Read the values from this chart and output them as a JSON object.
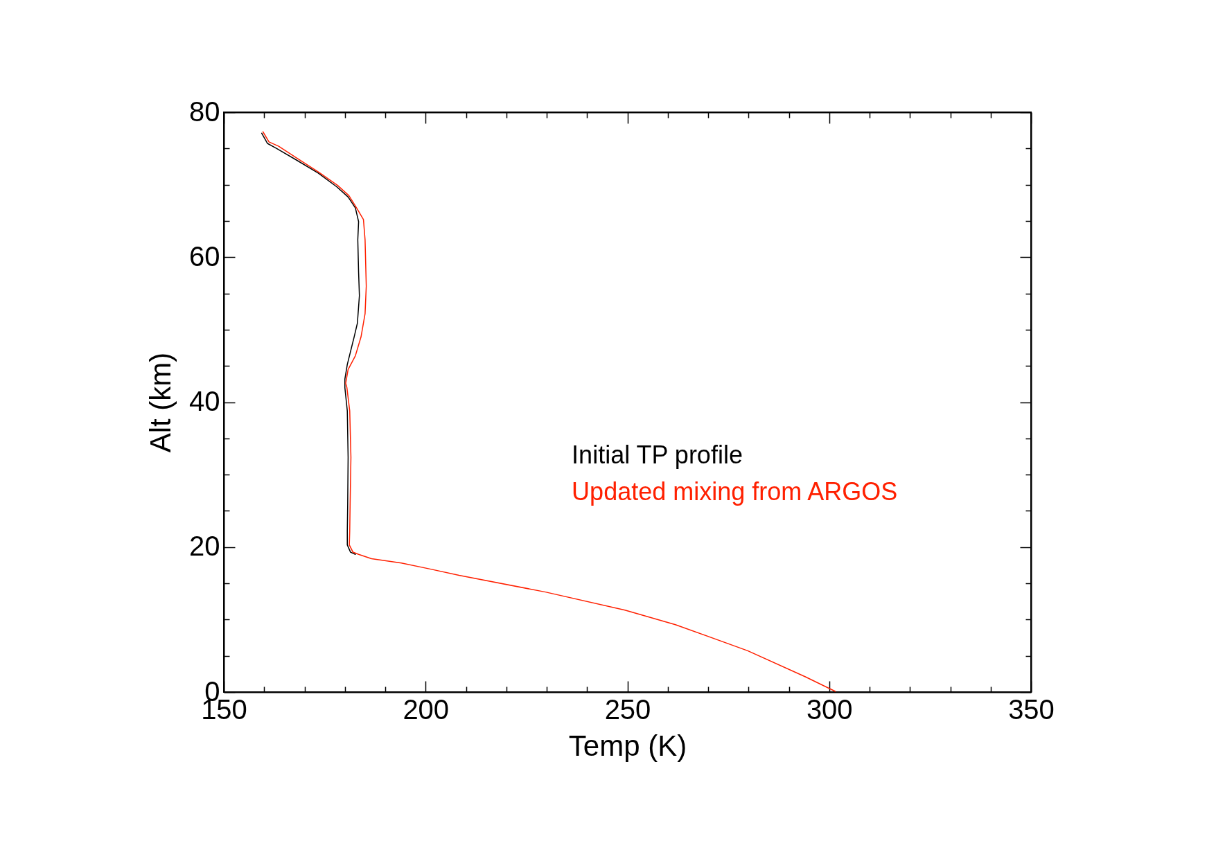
{
  "chart_data": {
    "type": "line",
    "xlabel": "Temp (K)",
    "ylabel": "Alt (km)",
    "xlim": [
      150,
      350
    ],
    "ylim": [
      0,
      80
    ],
    "xticks": [
      150,
      {
        "value": 160,
        "label": null
      },
      {
        "value": 170,
        "label": null
      },
      {
        "value": 180,
        "label": null
      },
      {
        "value": 190,
        "label": null
      },
      200,
      {
        "value": 210,
        "label": null
      },
      {
        "value": 220,
        "label": null
      },
      {
        "value": 230,
        "label": null
      },
      {
        "value": 240,
        "label": null
      },
      250,
      {
        "value": 260,
        "label": null
      },
      {
        "value": 270,
        "label": null
      },
      {
        "value": 280,
        "label": null
      },
      {
        "value": 290,
        "label": null
      },
      300,
      {
        "value": 310,
        "label": null
      },
      {
        "value": 320,
        "label": null
      },
      {
        "value": 330,
        "label": null
      },
      {
        "value": 340,
        "label": null
      },
      350
    ],
    "yticks": [
      0,
      {
        "value": 5,
        "label": null
      },
      {
        "value": 10,
        "label": null
      },
      {
        "value": 15,
        "label": null
      },
      20,
      {
        "value": 25,
        "label": null
      },
      {
        "value": 30,
        "label": null
      },
      {
        "value": 35,
        "label": null
      },
      40,
      {
        "value": 45,
        "label": null
      },
      {
        "value": 50,
        "label": null
      },
      {
        "value": 55,
        "label": null
      },
      60,
      {
        "value": 65,
        "label": null
      },
      {
        "value": 70,
        "label": null
      },
      {
        "value": 75,
        "label": null
      },
      80
    ],
    "grid": false,
    "legend": "right",
    "marker": "none",
    "line_style": "solid",
    "series": [
      {
        "name": "Initial TP profile",
        "color": "#000000",
        "x": [
          159.4,
          160.8,
          163.1,
          167.7,
          173.4,
          178.0,
          180.8,
          182.6,
          183.4,
          183.2,
          183.4,
          183.6,
          183.1,
          182.3,
          180.6,
          180.0,
          180.0,
          180.6,
          180.8,
          180.7,
          180.6,
          180.6,
          181.4,
          182.6
        ],
        "values": [
          77.1,
          75.7,
          75.0,
          73.5,
          71.6,
          69.7,
          68.3,
          66.8,
          64.9,
          62.4,
          57.9,
          54.7,
          50.9,
          49.0,
          45.2,
          43.2,
          42.0,
          38.8,
          32.4,
          26.0,
          22.2,
          20.3,
          19.3,
          19.0
        ]
      },
      {
        "name": "Updated mixing from ARGOS",
        "color": "#ff2000",
        "x": [
          159.7,
          161.2,
          163.6,
          168.0,
          173.6,
          178.2,
          181.0,
          182.9,
          184.6,
          185.0,
          185.3,
          185.0,
          184.0,
          182.6,
          180.8,
          180.2,
          180.5,
          181.2,
          181.5,
          181.3,
          181.2,
          181.1,
          182.0,
          183.4,
          186.6,
          194.0,
          200.9,
          208.3,
          229.7,
          249.4,
          261.9,
          279.8,
          294.1,
          301.5
        ],
        "values": [
          77.3,
          75.9,
          75.3,
          73.7,
          71.7,
          69.9,
          68.5,
          66.8,
          65.2,
          62.4,
          56.0,
          52.2,
          49.0,
          46.4,
          44.5,
          42.6,
          42.0,
          38.8,
          32.4,
          26.0,
          22.2,
          20.3,
          19.3,
          19.0,
          18.4,
          17.8,
          17.0,
          16.1,
          13.8,
          11.3,
          9.3,
          5.7,
          2.1,
          0.1
        ]
      }
    ]
  }
}
